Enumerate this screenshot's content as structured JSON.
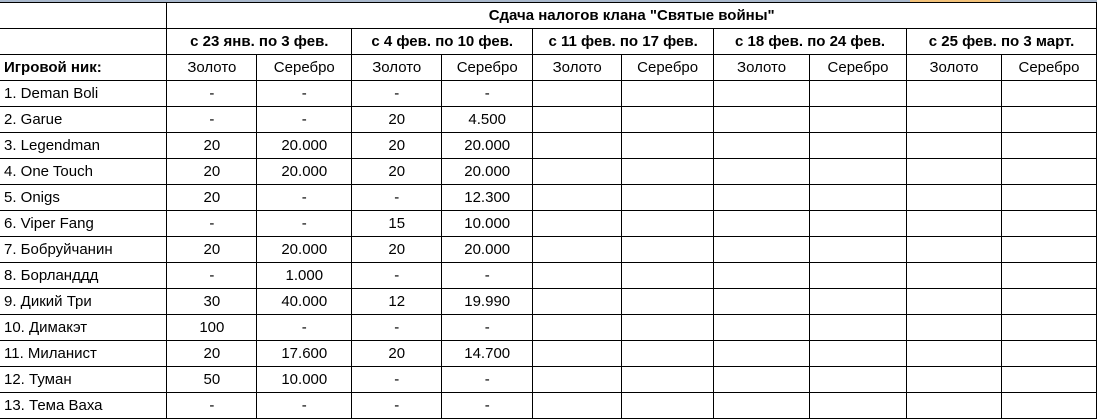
{
  "title": "Сдача налогов клана \"Святые войны\"",
  "nick_header": "Игровой ник:",
  "periods": [
    "с 23 янв. по 3 фев.",
    "с 4 фев. по 10 фев.",
    "с 11 фев. по 17 фев.",
    "с 18 фев. по 24 фев.",
    "с 25 фев. по 3 март."
  ],
  "gold_label": "Золото",
  "silver_label": "Серебро",
  "rows": [
    {
      "nick": "1. Deman Boli",
      "v": [
        "-",
        "-",
        "-",
        "-",
        "",
        "",
        "",
        "",
        "",
        ""
      ]
    },
    {
      "nick": "2. Garue",
      "v": [
        "-",
        "-",
        "20",
        "4.500",
        "",
        "",
        "",
        "",
        "",
        ""
      ]
    },
    {
      "nick": "3. Legendman",
      "v": [
        "20",
        "20.000",
        "20",
        "20.000",
        "",
        "",
        "",
        "",
        "",
        ""
      ]
    },
    {
      "nick": "4. One Touch",
      "v": [
        "20",
        "20.000",
        "20",
        "20.000",
        "",
        "",
        "",
        "",
        "",
        ""
      ]
    },
    {
      "nick": "5. Onigs",
      "v": [
        "20",
        "-",
        "-",
        "12.300",
        "",
        "",
        "",
        "",
        "",
        ""
      ]
    },
    {
      "nick": "6. Viper Fang",
      "v": [
        "-",
        "-",
        "15",
        "10.000",
        "",
        "",
        "",
        "",
        "",
        ""
      ]
    },
    {
      "nick": "7. Бобруйчанин",
      "v": [
        "20",
        "20.000",
        "20",
        "20.000",
        "",
        "",
        "",
        "",
        "",
        ""
      ]
    },
    {
      "nick": "8. Борланддд",
      "v": [
        "-",
        "1.000",
        "-",
        "-",
        "",
        "",
        "",
        "",
        "",
        ""
      ]
    },
    {
      "nick": "9. Дикий Три",
      "v": [
        "30",
        "40.000",
        "12",
        "19.990",
        "",
        "",
        "",
        "",
        "",
        ""
      ]
    },
    {
      "nick": "10. Димакэт",
      "v": [
        "100",
        "-",
        "-",
        "-",
        "",
        "",
        "",
        "",
        "",
        ""
      ]
    },
    {
      "nick": "11. Миланист",
      "v": [
        "20",
        "17.600",
        "20",
        "14.700",
        "",
        "",
        "",
        "",
        "",
        ""
      ]
    },
    {
      "nick": "12. Туман",
      "v": [
        "50",
        "10.000",
        "-",
        "-",
        "",
        "",
        "",
        "",
        "",
        ""
      ]
    },
    {
      "nick": "13. Тема Ваха",
      "v": [
        "-",
        "-",
        "-",
        "-",
        "",
        "",
        "",
        "",
        "",
        ""
      ]
    }
  ]
}
